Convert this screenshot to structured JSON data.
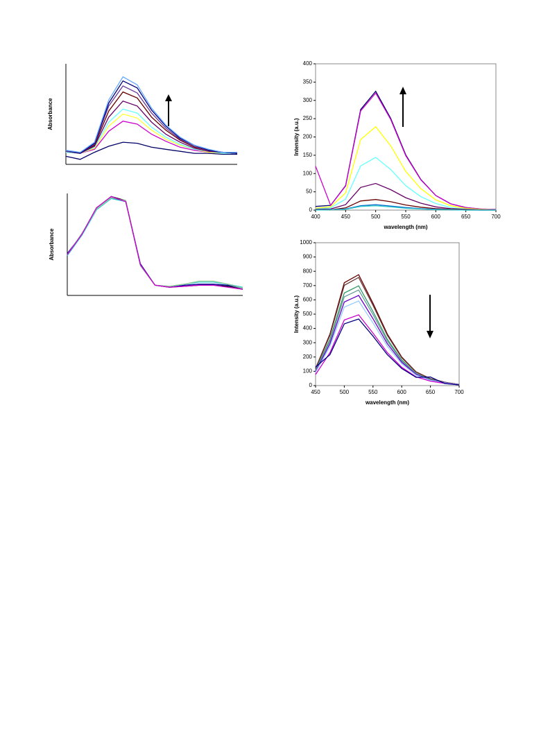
{
  "chart_data": [
    {
      "type": "line",
      "y_label": "Absorbance",
      "ylim": [
        0,
        1
      ],
      "categories": [
        null,
        null,
        null,
        null,
        null,
        null,
        null,
        null,
        null,
        null,
        null,
        null,
        null
      ],
      "series": [
        {
          "color": "#000066",
          "values": [
            0.08,
            0.05,
            0.12,
            0.18,
            0.22,
            0.21,
            0.17,
            0.15,
            0.13,
            0.11,
            0.11,
            0.1,
            0.1
          ]
        },
        {
          "color": "#cc00cc",
          "values": [
            0.12,
            0.11,
            0.15,
            0.33,
            0.43,
            0.4,
            0.3,
            0.23,
            0.17,
            0.14,
            0.12,
            0.11,
            0.11
          ]
        },
        {
          "color": "#ffff33",
          "values": [
            0.12,
            0.11,
            0.16,
            0.38,
            0.5,
            0.46,
            0.34,
            0.25,
            0.19,
            0.15,
            0.12,
            0.11,
            0.11
          ]
        },
        {
          "color": "#66ffff",
          "values": [
            0.12,
            0.11,
            0.17,
            0.42,
            0.55,
            0.51,
            0.37,
            0.27,
            0.2,
            0.15,
            0.13,
            0.11,
            0.11
          ]
        },
        {
          "color": "#660066",
          "values": [
            0.13,
            0.11,
            0.18,
            0.47,
            0.63,
            0.58,
            0.42,
            0.3,
            0.22,
            0.16,
            0.13,
            0.12,
            0.11
          ]
        },
        {
          "color": "#660000",
          "values": [
            0.13,
            0.11,
            0.19,
            0.53,
            0.72,
            0.66,
            0.47,
            0.34,
            0.24,
            0.17,
            0.14,
            0.12,
            0.11
          ]
        },
        {
          "color": "#663399",
          "values": [
            0.13,
            0.11,
            0.2,
            0.58,
            0.78,
            0.71,
            0.51,
            0.36,
            0.25,
            0.18,
            0.14,
            0.12,
            0.11
          ]
        },
        {
          "color": "#000080",
          "values": [
            0.14,
            0.11,
            0.21,
            0.61,
            0.83,
            0.76,
            0.54,
            0.38,
            0.26,
            0.19,
            0.14,
            0.12,
            0.11
          ]
        },
        {
          "color": "#66aaff",
          "values": [
            0.14,
            0.12,
            0.22,
            0.64,
            0.87,
            0.79,
            0.56,
            0.39,
            0.27,
            0.19,
            0.15,
            0.12,
            0.12
          ]
        }
      ]
    },
    {
      "type": "line",
      "y_label": "Absorbance",
      "ylim": [
        0,
        1
      ],
      "categories": [
        null,
        null,
        null,
        null,
        null,
        null,
        null,
        null,
        null,
        null,
        null,
        null,
        null
      ],
      "series": [
        {
          "color": "#000000",
          "values": [
            0.4,
            0.6,
            0.85,
            0.97,
            0.93,
            0.3,
            0.1,
            0.08,
            0.09,
            0.1,
            0.1,
            0.09,
            0.06
          ]
        },
        {
          "color": "#000099",
          "values": [
            0.41,
            0.6,
            0.86,
            0.96,
            0.92,
            0.31,
            0.1,
            0.08,
            0.1,
            0.11,
            0.11,
            0.1,
            0.07
          ]
        },
        {
          "color": "#33cccc",
          "values": [
            0.39,
            0.59,
            0.84,
            0.95,
            0.92,
            0.3,
            0.1,
            0.09,
            0.11,
            0.13,
            0.13,
            0.11,
            0.08
          ]
        },
        {
          "color": "#99cc99",
          "values": [
            0.4,
            0.61,
            0.85,
            0.96,
            0.93,
            0.29,
            0.1,
            0.09,
            0.11,
            0.14,
            0.14,
            0.11,
            0.07
          ]
        },
        {
          "color": "#cc00cc",
          "values": [
            0.4,
            0.6,
            0.86,
            0.97,
            0.92,
            0.3,
            0.1,
            0.08,
            0.09,
            0.1,
            0.1,
            0.08,
            0.06
          ]
        }
      ]
    },
    {
      "type": "line",
      "x_label": "wavelength (nm)",
      "y_label": "Intensity (a.u.)",
      "xlim": [
        400,
        700
      ],
      "xticks": [
        400,
        450,
        500,
        550,
        600,
        650,
        700
      ],
      "ylim": [
        0,
        400
      ],
      "yticks": [
        0,
        50,
        100,
        150,
        200,
        250,
        300,
        350,
        400
      ],
      "x": [
        400,
        425,
        450,
        475,
        500,
        525,
        550,
        575,
        600,
        625,
        650,
        675,
        700
      ],
      "series": [
        {
          "color": "#000066",
          "values": [
            10,
            13,
            67,
            275,
            325,
            251,
            151,
            84,
            40,
            17,
            7,
            3,
            2
          ]
        },
        {
          "color": "#cc00cc",
          "values": [
            120,
            13,
            66,
            271,
            320,
            248,
            149,
            83,
            40,
            17,
            7,
            3,
            2
          ]
        },
        {
          "color": "#ffff00",
          "values": [
            5,
            9,
            47,
            193,
            228,
            176,
            106,
            59,
            28,
            12,
            5,
            2,
            1
          ]
        },
        {
          "color": "#66ffff",
          "values": [
            3,
            6,
            30,
            121,
            144,
            111,
            67,
            37,
            18,
            7,
            3,
            1,
            1
          ]
        },
        {
          "color": "#660066",
          "values": [
            2,
            3,
            15,
            62,
            73,
            56,
            34,
            19,
            9,
            4,
            2,
            1,
            0
          ]
        },
        {
          "color": "#660000",
          "values": [
            1,
            1,
            6,
            25,
            29,
            23,
            14,
            8,
            4,
            2,
            1,
            0,
            0
          ]
        },
        {
          "color": "#0066cc",
          "values": [
            1,
            1,
            3,
            12,
            15,
            11,
            7,
            4,
            2,
            1,
            0,
            0,
            0
          ]
        },
        {
          "color": "#33cccc",
          "values": [
            0,
            1,
            2,
            10,
            12,
            9,
            5,
            3,
            1,
            1,
            0,
            0,
            0
          ]
        }
      ]
    },
    {
      "type": "line",
      "x_label": "wavelength (nm)",
      "y_label": "Intensity (a.u.)",
      "xlim": [
        450,
        700
      ],
      "xticks": [
        450,
        500,
        550,
        600,
        650,
        700
      ],
      "ylim": [
        0,
        1000
      ],
      "yticks": [
        0,
        100,
        200,
        300,
        400,
        500,
        600,
        700,
        800,
        900,
        1000
      ],
      "x": [
        450,
        475,
        500,
        525,
        550,
        575,
        600,
        625,
        650,
        675,
        700
      ],
      "series": [
        {
          "color": "#660000",
          "values": [
            120,
            360,
            720,
            776,
            576,
            360,
            200,
            96,
            48,
            24,
            8
          ]
        },
        {
          "color": "#663333",
          "values": [
            117,
            351,
            702,
            757,
            562,
            351,
            195,
            94,
            47,
            23,
            8
          ]
        },
        {
          "color": "#339966",
          "values": [
            108,
            324,
            648,
            698,
            518,
            324,
            180,
            86,
            43,
            22,
            7
          ]
        },
        {
          "color": "#669999",
          "values": [
            104,
            311,
            621,
            669,
            497,
            311,
            173,
            83,
            41,
            21,
            7
          ]
        },
        {
          "color": "#6600cc",
          "values": [
            98,
            293,
            585,
            631,
            468,
            293,
            163,
            78,
            39,
            20,
            7
          ]
        },
        {
          "color": "#99ccff",
          "values": [
            92,
            275,
            549,
            592,
            439,
            275,
            153,
            73,
            37,
            18,
            6
          ]
        },
        {
          "color": "#cc00cc",
          "values": [
            77,
            230,
            459,
            495,
            367,
            230,
            128,
            61,
            31,
            15,
            5
          ]
        },
        {
          "color": "#000080",
          "values": [
            130,
            216,
            432,
            466,
            346,
            216,
            120,
            58,
            60,
            14,
            5
          ]
        }
      ]
    }
  ]
}
